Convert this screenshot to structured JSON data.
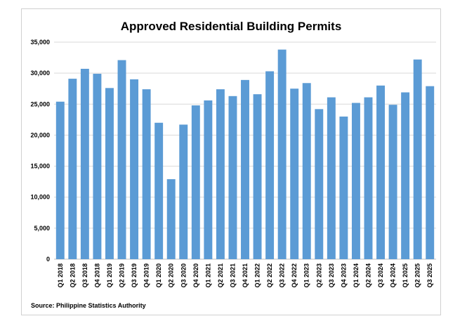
{
  "chart_data": {
    "type": "bar",
    "title": "Approved Residential Building Permits",
    "source": "Source: Philippine Statistics Authority",
    "xlabel": "",
    "ylabel": "",
    "ylim": [
      0,
      35000
    ],
    "yticks": [
      0,
      5000,
      10000,
      15000,
      20000,
      25000,
      30000,
      35000
    ],
    "ytick_labels": [
      "0",
      "5,000",
      "10,000",
      "15,000",
      "20,000",
      "25,000",
      "30,000",
      "35,000"
    ],
    "grid": true,
    "bar_color": "#5b9bd5",
    "categories": [
      "Q1 2018",
      "Q2 2018",
      "Q3 2018",
      "Q4 2018",
      "Q1 2019",
      "Q2 2019",
      "Q3 2019",
      "Q4 2019",
      "Q1 2020",
      "Q2 2020",
      "Q3 2020",
      "Q4 2020",
      "Q1 2021",
      "Q2 2021",
      "Q3 2021",
      "Q4 2021",
      "Q1 2022",
      "Q2 2022",
      "Q3 2022",
      "Q4 2022",
      "Q1 2023",
      "Q2 2023",
      "Q3 2023",
      "Q4 2023",
      "Q1 2024",
      "Q2 2024",
      "Q3 2024",
      "Q4 2024",
      "Q1 2025",
      "Q2 2025",
      "Q3 2025"
    ],
    "values": [
      25400,
      29100,
      30700,
      29900,
      27600,
      32100,
      29000,
      27400,
      22000,
      12900,
      21700,
      24800,
      25600,
      27400,
      26300,
      28900,
      26600,
      30300,
      33800,
      27500,
      28400,
      24200,
      26100,
      23000,
      25200,
      26100,
      28000,
      24900,
      26900,
      32200,
      27900
    ]
  }
}
